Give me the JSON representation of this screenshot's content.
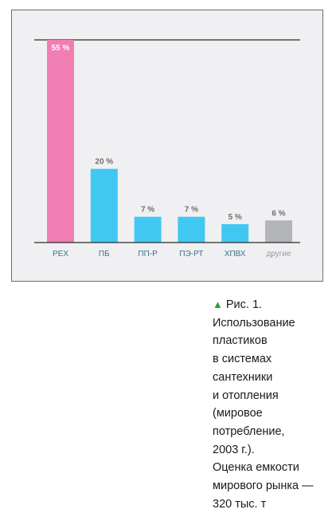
{
  "chart_data": {
    "type": "bar",
    "categories": [
      "PEX",
      "ПБ",
      "ПП-Р",
      "ПЭ-РТ",
      "ХПВХ",
      "другие"
    ],
    "values": [
      55,
      20,
      7,
      7,
      5,
      6
    ],
    "value_labels": [
      "55 %",
      "20 %",
      "7 %",
      "7 %",
      "5 %",
      "6 %"
    ],
    "ylim": [
      0,
      55
    ],
    "colors": [
      "#f17eb3",
      "#41c8f2",
      "#41c8f2",
      "#41c8f2",
      "#41c8f2",
      "#b3b4b8"
    ],
    "category_label_colors": [
      "#3a6f8f",
      "#3a6f8f",
      "#3a6f8f",
      "#3a6f8f",
      "#3a6f8f",
      "#9a9a9a"
    ],
    "grid": false,
    "legend": "none"
  },
  "caption": {
    "marker_icon": "triangle-up-icon",
    "marker_color": "#2e9a3e",
    "lines": [
      "Рис. 1.",
      "Использование",
      "пластиков",
      "в системах",
      "сантехники",
      "и отопления",
      "(мировое",
      "потребление,",
      "2003 г.).",
      "Оценка емкости",
      "мирового рынка —",
      "320 тыс. т"
    ]
  }
}
